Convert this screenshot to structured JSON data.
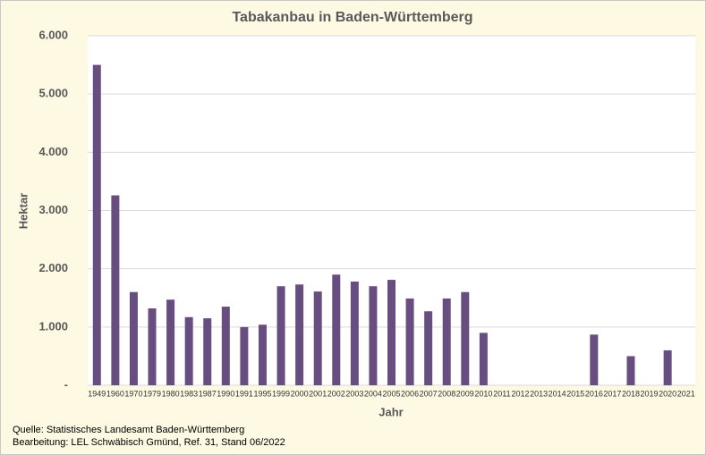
{
  "chart_data": {
    "type": "bar",
    "title": "Tabakanbau in Baden-Württemberg",
    "y_label": "Hektar",
    "x_label": "Jahr",
    "categories": [
      "1949",
      "1960",
      "1970",
      "1979",
      "1980",
      "1983",
      "1987",
      "1990",
      "1991",
      "1995",
      "1999",
      "2000",
      "2001",
      "2002",
      "2003",
      "2004",
      "2005",
      "2006",
      "2007",
      "2008",
      "2009",
      "2010",
      "2011",
      "2012",
      "2013",
      "2014",
      "2015",
      "2016",
      "2017",
      "2018",
      "2019",
      "2020",
      "2021"
    ],
    "values": [
      5500,
      3260,
      1600,
      1320,
      1470,
      1170,
      1150,
      1350,
      1000,
      1040,
      1700,
      1730,
      1610,
      1900,
      1780,
      1700,
      1810,
      1490,
      1270,
      1490,
      1600,
      900,
      null,
      null,
      null,
      null,
      null,
      870,
      null,
      500,
      null,
      600,
      null
    ],
    "color": "#684e80",
    "ylim": [
      0,
      6000
    ],
    "yticks": [
      {
        "value": 0,
        "label": "-"
      },
      {
        "value": 1000,
        "label": "1.000"
      },
      {
        "value": 2000,
        "label": "2.000"
      },
      {
        "value": 3000,
        "label": "3.000"
      },
      {
        "value": 4000,
        "label": "4.000"
      },
      {
        "value": 5000,
        "label": "5.000"
      },
      {
        "value": 6000,
        "label": "6.000"
      }
    ],
    "grid": true,
    "source": [
      "Quelle: Statistisches Landesamt Baden-Württemberg",
      "Bearbeitung: LEL Schwäbisch Gmünd, Ref. 31, Stand 06/2022"
    ]
  }
}
